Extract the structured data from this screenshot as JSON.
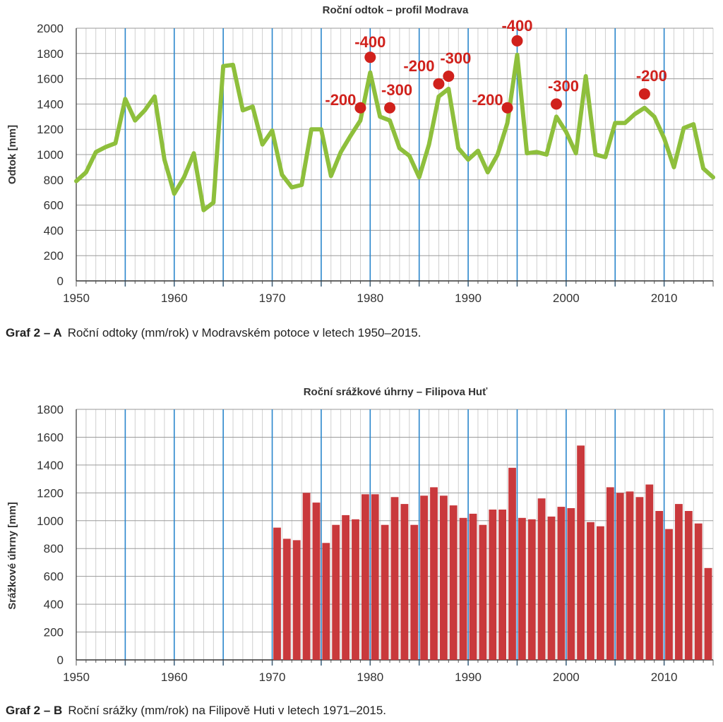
{
  "chart_data": [
    {
      "type": "line",
      "title": "Roční odtok – profil Modrava",
      "xlabel": "",
      "ylabel": "Odtok [mm]",
      "xlim": [
        1950,
        2015
      ],
      "ylim": [
        0,
        2000
      ],
      "yticks": [
        0,
        200,
        400,
        600,
        800,
        1000,
        1200,
        1400,
        1600,
        1800,
        2000
      ],
      "xticks": [
        1950,
        1960,
        1970,
        1980,
        1990,
        2000,
        2010
      ],
      "major_gridlines_x": [
        1955,
        1960,
        1965,
        1970,
        1975,
        1980,
        1985,
        1990,
        1995,
        2000,
        2005,
        2010
      ],
      "grid": true,
      "line_color": "#8ebf3c",
      "series": [
        {
          "x": [
            1950,
            1951,
            1952,
            1953,
            1954,
            1955,
            1956,
            1957,
            1958,
            1959,
            1960,
            1961,
            1962,
            1963,
            1964,
            1965,
            1966,
            1967,
            1968,
            1969,
            1970,
            1971,
            1972,
            1973,
            1974,
            1975,
            1976,
            1977,
            1978,
            1979,
            1980,
            1981,
            1982,
            1983,
            1984,
            1985,
            1986,
            1987,
            1988,
            1989,
            1990,
            1991,
            1992,
            1993,
            1994,
            1995,
            1996,
            1997,
            1998,
            1999,
            2000,
            2001,
            2002,
            2003,
            2004,
            2005,
            2006,
            2007,
            2008,
            2009,
            2010,
            2011,
            2012,
            2013,
            2014,
            2015
          ],
          "values": [
            790,
            860,
            1020,
            1060,
            1090,
            1440,
            1270,
            1350,
            1460,
            960,
            690,
            820,
            1010,
            560,
            620,
            1700,
            1710,
            1350,
            1380,
            1080,
            1190,
            840,
            740,
            760,
            1200,
            1200,
            830,
            1020,
            1150,
            1270,
            1650,
            1300,
            1270,
            1050,
            990,
            820,
            1080,
            1460,
            1520,
            1050,
            960,
            1030,
            860,
            1000,
            1250,
            1790,
            1010,
            1020,
            1000,
            1300,
            1180,
            1010,
            1620,
            1000,
            980,
            1250,
            1250,
            1320,
            1370,
            1300,
            1130,
            900,
            1210,
            1240,
            890,
            820
          ]
        }
      ],
      "annotations": [
        {
          "x": 1979,
          "y": 1370,
          "text": "-200"
        },
        {
          "x": 1980,
          "y": 1770,
          "text": "-400"
        },
        {
          "x": 1982,
          "y": 1370,
          "text": "-300"
        },
        {
          "x": 1987,
          "y": 1560,
          "text": "-200"
        },
        {
          "x": 1988,
          "y": 1620,
          "text": "-300"
        },
        {
          "x": 1994,
          "y": 1370,
          "text": "-200"
        },
        {
          "x": 1995,
          "y": 1900,
          "text": "-400"
        },
        {
          "x": 1999,
          "y": 1400,
          "text": "-300"
        },
        {
          "x": 2008,
          "y": 1480,
          "text": "-200"
        }
      ],
      "annotation_color": "#d0211c"
    },
    {
      "type": "bar",
      "title": "Roční srážkové úhrny – Filipova Huť",
      "xlabel": "",
      "ylabel": "Srážkové úhrny [mm]",
      "xlim": [
        1950,
        2015
      ],
      "ylim": [
        0,
        1800
      ],
      "yticks": [
        0,
        200,
        400,
        600,
        800,
        1000,
        1200,
        1400,
        1600,
        1800
      ],
      "xticks": [
        1950,
        1960,
        1970,
        1980,
        1990,
        2000,
        2010
      ],
      "major_gridlines_x": [
        1955,
        1960,
        1965,
        1970,
        1975,
        1980,
        1985,
        1990,
        1995,
        2000,
        2005,
        2010
      ],
      "grid": true,
      "bar_color": "#c9393c",
      "categories": [
        1971,
        1972,
        1973,
        1974,
        1975,
        1976,
        1977,
        1978,
        1979,
        1980,
        1981,
        1982,
        1983,
        1984,
        1985,
        1986,
        1987,
        1988,
        1989,
        1990,
        1991,
        1992,
        1993,
        1994,
        1995,
        1996,
        1997,
        1998,
        1999,
        2000,
        2001,
        2002,
        2003,
        2004,
        2005,
        2006,
        2007,
        2008,
        2009,
        2010,
        2011,
        2012,
        2013,
        2014,
        2015
      ],
      "values": [
        950,
        870,
        860,
        1200,
        1130,
        840,
        970,
        1040,
        1010,
        1190,
        1190,
        970,
        1170,
        1120,
        970,
        1180,
        1240,
        1180,
        1110,
        1020,
        1050,
        970,
        1080,
        1080,
        1380,
        1020,
        1010,
        1160,
        1030,
        1100,
        1090,
        1540,
        990,
        960,
        1240,
        1200,
        1210,
        1170,
        1260,
        1070,
        940,
        1120,
        1070,
        980,
        660
      ]
    }
  ],
  "captions": [
    {
      "label": "Graf 2 – A",
      "text": "Roční odtoky (mm/rok) v Modravském potoce v letech 1950–2015."
    },
    {
      "label": "Graf 2 – B",
      "text": "Roční srážky (mm/rok) na Filipově Huti v letech 1971–2015."
    }
  ]
}
